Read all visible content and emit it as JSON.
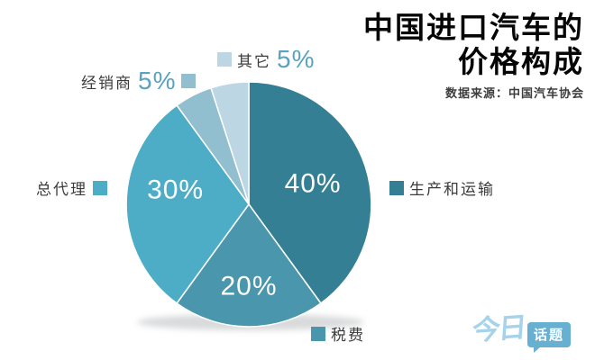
{
  "title": {
    "line1": "中国进口汽车的",
    "line2": "价格构成"
  },
  "source": "数据来源：中国汽车协会",
  "logo": {
    "part1": "今日",
    "part2": "话题"
  },
  "theme": {
    "percent_color": "#5AA2C0",
    "label_color": "#3b3b3b",
    "title_color": "#060606",
    "logo_text_color": "#A6D3EA",
    "logo_bubble_color": "#68B0D2"
  },
  "chart_data": {
    "type": "pie",
    "title": "中国进口汽车的价格构成",
    "source": "数据来源：中国汽车协会",
    "start_angle_deg": 0,
    "direction": "clockwise",
    "legend_position": "around",
    "slices": [
      {
        "label": "生产和运输",
        "value": 40,
        "pct_label": "40%",
        "color": "#347F93",
        "pct_position": "inside"
      },
      {
        "label": "税费",
        "value": 20,
        "pct_label": "20%",
        "color": "#4A96AC",
        "pct_position": "inside"
      },
      {
        "label": "总代理",
        "value": 30,
        "pct_label": "30%",
        "color": "#4EADC6",
        "pct_position": "inside"
      },
      {
        "label": "经销商",
        "value": 5,
        "pct_label": "5%",
        "color": "#92BFD0",
        "pct_position": "outside"
      },
      {
        "label": "其它",
        "value": 5,
        "pct_label": "5%",
        "color": "#BCD6E3",
        "pct_position": "outside"
      }
    ]
  }
}
